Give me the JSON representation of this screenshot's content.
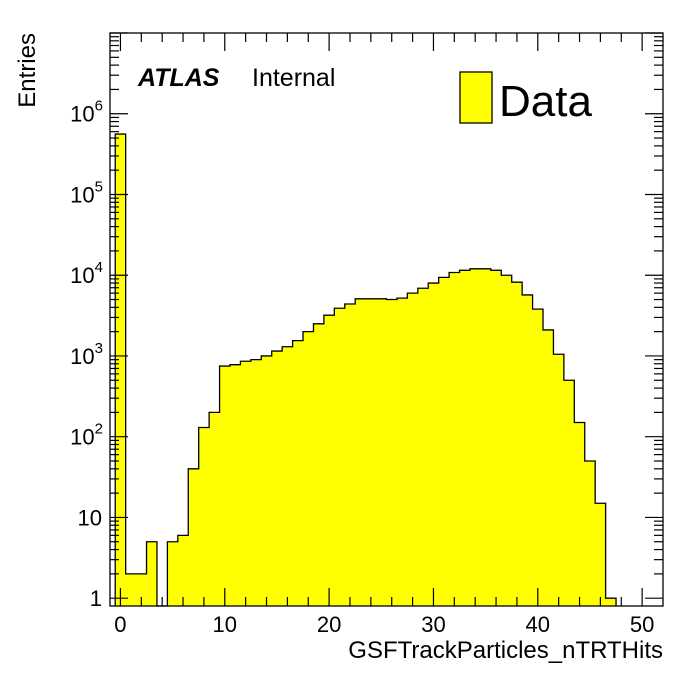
{
  "chart_data": {
    "type": "bar",
    "subtype": "histogram",
    "title": "",
    "xlabel": "GSFTrackParticles_nTRTHits",
    "ylabel": "Entries",
    "xlim": [
      -1,
      52
    ],
    "ylim": [
      0.8,
      10000000
    ],
    "yscale": "log",
    "x_ticks": [
      0,
      10,
      20,
      30,
      40,
      50
    ],
    "x_tick_labels": [
      "0",
      "10",
      "20",
      "30",
      "40",
      "50"
    ],
    "y_ticks": [
      1,
      10,
      100,
      1000,
      10000,
      100000,
      1000000
    ],
    "y_tick_labels": [
      {
        "base": "1",
        "exp": ""
      },
      {
        "base": "10",
        "exp": ""
      },
      {
        "base": "10",
        "exp": "2"
      },
      {
        "base": "10",
        "exp": "3"
      },
      {
        "base": "10",
        "exp": "4"
      },
      {
        "base": "10",
        "exp": "5"
      },
      {
        "base": "10",
        "exp": "6"
      }
    ],
    "bin_width": 1,
    "bin_low_edges": [
      -0.5,
      0.5,
      1.5,
      2.5,
      3.5,
      4.5,
      5.5,
      6.5,
      7.5,
      8.5,
      9.5,
      10.5,
      11.5,
      12.5,
      13.5,
      14.5,
      15.5,
      16.5,
      17.5,
      18.5,
      19.5,
      20.5,
      21.5,
      22.5,
      23.5,
      24.5,
      25.5,
      26.5,
      27.5,
      28.5,
      29.5,
      30.5,
      31.5,
      32.5,
      33.5,
      34.5,
      35.5,
      36.5,
      37.5,
      38.5,
      39.5,
      40.5,
      41.5,
      42.5,
      43.5,
      44.5,
      45.5,
      46.5
    ],
    "values": [
      560000,
      2,
      2,
      5,
      0,
      5,
      6,
      40,
      130,
      200,
      750,
      780,
      860,
      900,
      1000,
      1150,
      1300,
      1550,
      2000,
      2500,
      3200,
      3900,
      4400,
      5100,
      5100,
      5100,
      5000,
      5200,
      6000,
      6900,
      8000,
      9400,
      10800,
      11500,
      12000,
      12000,
      11500,
      10000,
      8200,
      5700,
      3800,
      2100,
      1050,
      500,
      150,
      50,
      15,
      1
    ],
    "series": [
      {
        "name": "Data",
        "color": "#ffff00",
        "edge_color": "#000000"
      }
    ],
    "legend": {
      "position": "top-right",
      "entries": [
        "Data"
      ]
    },
    "annotations": {
      "experiment": "ATLAS",
      "status": "Internal"
    },
    "grid": false
  }
}
